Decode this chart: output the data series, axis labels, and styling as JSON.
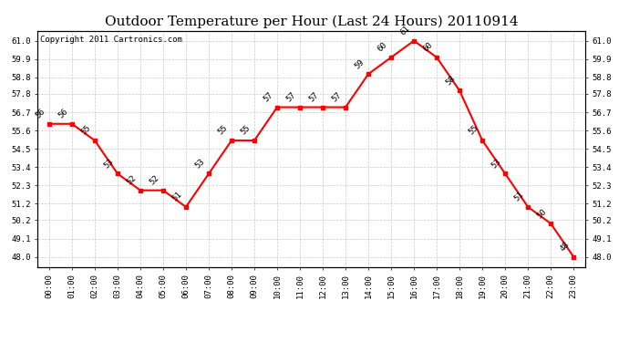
{
  "title": "Outdoor Temperature per Hour (Last 24 Hours) 20110914",
  "copyright": "Copyright 2011 Cartronics.com",
  "hours": [
    "00:00",
    "01:00",
    "02:00",
    "03:00",
    "04:00",
    "05:00",
    "06:00",
    "07:00",
    "08:00",
    "09:00",
    "10:00",
    "11:00",
    "12:00",
    "13:00",
    "14:00",
    "15:00",
    "16:00",
    "17:00",
    "18:00",
    "19:00",
    "20:00",
    "21:00",
    "22:00",
    "23:00"
  ],
  "temps": [
    56,
    56,
    55,
    53,
    52,
    52,
    51,
    53,
    55,
    55,
    57,
    57,
    57,
    57,
    59,
    60,
    61,
    60,
    58,
    55,
    53,
    51,
    50,
    48
  ],
  "ylim_min": 47.4,
  "ylim_max": 61.6,
  "yticks": [
    48.0,
    49.1,
    50.2,
    51.2,
    52.3,
    53.4,
    54.5,
    55.6,
    56.7,
    57.8,
    58.8,
    59.9,
    61.0
  ],
  "line_color": "red",
  "marker": "s",
  "marker_size": 3.5,
  "grid_color": "#bbbbbb",
  "bg_color": "white",
  "title_fontsize": 11,
  "annot_fontsize": 6.5,
  "tick_fontsize": 6.5,
  "copyright_fontsize": 6.5
}
